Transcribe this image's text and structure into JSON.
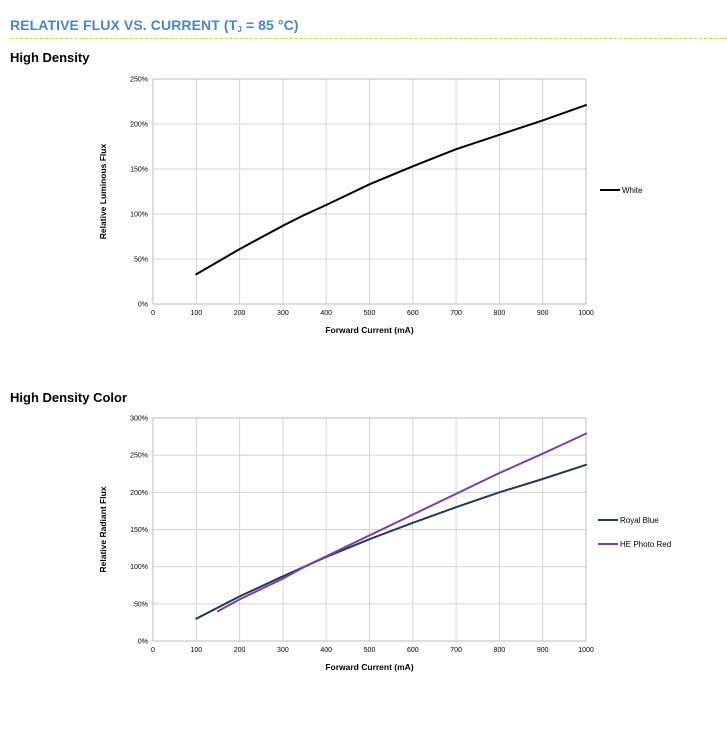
{
  "header": {
    "title_prefix": "RELATIVE FLUX VS. CURRENT (T",
    "title_sub": "J",
    "title_suffix": " = 85 °C)"
  },
  "chart_data": [
    {
      "type": "line",
      "title": "High Density",
      "xlabel": "Forward Current (mA)",
      "ylabel": "Relative Luminous Flux",
      "xlim": [
        0,
        1000
      ],
      "ylim": [
        0,
        250
      ],
      "x_ticks": [
        0,
        100,
        200,
        300,
        400,
        500,
        600,
        700,
        800,
        900,
        1000
      ],
      "y_ticks": [
        0,
        50,
        100,
        150,
        200,
        250
      ],
      "y_tick_labels": [
        "0%",
        "50%",
        "100%",
        "150%",
        "200%",
        "250%"
      ],
      "grid": true,
      "legend_position": "right",
      "series": [
        {
          "name": "White",
          "color": "#000000",
          "x": [
            100,
            200,
            300,
            350,
            400,
            500,
            600,
            700,
            800,
            900,
            1000
          ],
          "y": [
            33,
            61,
            87,
            99,
            110,
            133,
            153,
            172,
            188,
            204,
            221
          ]
        }
      ]
    },
    {
      "type": "line",
      "title": "High Density Color",
      "xlabel": "Forward Current (mA)",
      "ylabel": "Relative Radiant Flux",
      "xlim": [
        0,
        1000
      ],
      "ylim": [
        0,
        300
      ],
      "x_ticks": [
        0,
        100,
        200,
        300,
        400,
        500,
        600,
        700,
        800,
        900,
        1000
      ],
      "y_ticks": [
        0,
        50,
        100,
        150,
        200,
        250,
        300
      ],
      "y_tick_labels": [
        "0%",
        "50%",
        "100%",
        "150%",
        "200%",
        "250%",
        "300%"
      ],
      "grid": true,
      "legend_position": "right",
      "series": [
        {
          "name": "Royal Blue",
          "color": "#1f3a5a",
          "x": [
            100,
            200,
            300,
            350,
            400,
            500,
            600,
            700,
            800,
            900,
            1000
          ],
          "y": [
            30,
            60,
            87,
            100,
            113,
            137,
            159,
            180,
            200,
            218,
            237
          ]
        },
        {
          "name": "HE Photo Red",
          "color": "#7b3fa6",
          "x": [
            150,
            200,
            300,
            350,
            400,
            500,
            600,
            700,
            800,
            900,
            1000
          ],
          "y": [
            40,
            56,
            84,
            100,
            114,
            142,
            170,
            198,
            226,
            252,
            279
          ]
        }
      ]
    }
  ]
}
